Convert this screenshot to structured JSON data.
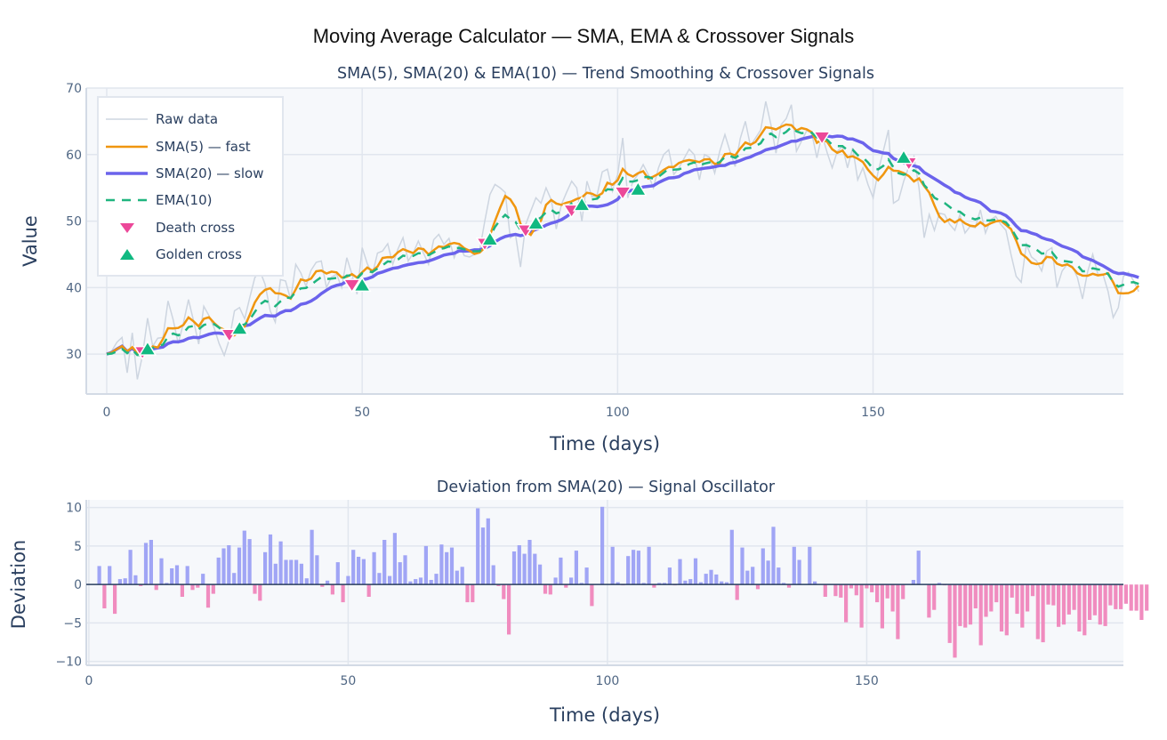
{
  "title": "Moving Average Calculator — SMA, EMA & Crossover Signals",
  "colors": {
    "raw": "#cdd5e0",
    "sma5": "#f0960f",
    "sma20": "#6b63ec",
    "ema10": "#1fb57f",
    "death": "#ec4899",
    "golden": "#10b981",
    "dev_pos": "#a0a5f5",
    "dev_neg": "#f08cbf",
    "plot_bg": "#f6f8fb",
    "grid": "#e1e6ee"
  },
  "chart_data": [
    {
      "type": "line",
      "title": "SMA(5), SMA(20) & EMA(10) — Trend Smoothing & Crossover Signals",
      "xlabel": "Time (days)",
      "ylabel": "Value",
      "xlim": [
        -4,
        199
      ],
      "ylim": [
        24,
        70
      ],
      "xticks": [
        0,
        50,
        100,
        150
      ],
      "yticks": [
        30,
        40,
        50,
        60,
        70
      ],
      "grid": true,
      "legend_position": "top-left",
      "legend": [
        "Raw data",
        "SMA(5) — fast",
        "SMA(20) — slow",
        "EMA(10)",
        "Death cross",
        "Golden cross"
      ],
      "series": [
        {
          "name": "Raw data",
          "values": [
            30,
            30.5,
            31.8,
            32.5,
            27.2,
            33.2,
            26.2,
            29.8,
            35.4,
            31.2,
            32.4,
            32.5,
            38,
            35.2,
            31.6,
            34.6,
            38.2,
            35,
            31.5,
            37.2,
            35.8,
            34,
            31.6,
            29.8,
            32.2,
            36.5,
            37,
            35.3,
            38.5,
            41.5,
            42.5,
            40.5,
            36.5,
            34.8,
            41.2,
            41,
            38.2,
            43.5,
            42.2,
            40.2,
            42.6,
            43.8,
            44,
            40,
            41.6,
            42,
            40,
            44.5,
            42,
            39,
            46,
            43.6,
            42,
            45.2,
            45.5,
            46.6,
            43.5,
            45.8,
            47.5,
            44,
            45.2,
            47,
            45.2,
            43.5,
            47.2,
            48,
            46.5,
            47.4,
            44.5,
            46.4,
            44.8,
            44.6,
            45,
            45.6,
            50,
            54,
            55.5,
            55,
            54.3,
            47.5,
            48,
            43.1,
            49.5,
            51.5,
            53.5,
            52.7,
            55,
            53.2,
            48.8,
            52.5,
            54.3,
            56,
            55,
            50,
            56,
            53.6,
            54,
            57.4,
            57.8,
            54.5,
            57,
            62.5,
            53.5,
            56,
            57,
            58.5,
            57,
            55,
            58,
            60,
            60.7,
            57,
            58,
            59.4,
            60.8,
            60,
            56.2,
            60,
            59.6,
            57.2,
            60.5,
            63,
            60.5,
            58.2,
            62.4,
            65,
            61.3,
            62.5,
            63.7,
            68,
            64.5,
            60.2,
            64.5,
            65.4,
            67.5,
            60.5,
            62,
            63.6,
            63.2,
            59.5,
            63,
            60.3,
            58,
            60.5,
            61.2,
            58,
            61,
            56.2,
            58,
            55.5,
            53.5,
            57.5,
            60.5,
            63.7,
            52.7,
            53.2,
            56,
            58.2,
            59.7,
            55,
            47.5,
            51,
            48.6,
            51.2,
            51,
            49.5,
            48.6,
            51,
            48.2,
            49.2,
            49,
            51.7,
            48.2,
            50.2,
            50.7,
            49.5,
            48.6,
            45,
            41.7,
            40.8,
            46.5,
            44.6,
            44,
            42.5,
            45.5,
            46,
            40,
            42.5,
            43.5,
            43.2,
            41.5,
            38.3,
            42.4,
            45,
            42,
            42,
            39.4,
            35.5,
            37,
            41.7,
            42.3,
            41,
            39.4
          ]
        },
        {
          "name": "SMA(5) — fast",
          "derived_from": "Raw data",
          "window": 5
        },
        {
          "name": "SMA(20) — slow",
          "derived_from": "Raw data",
          "window": 20
        },
        {
          "name": "EMA(10)",
          "derived_from": "Raw data",
          "span": 10
        },
        {
          "name": "Death cross",
          "x": [
            7,
            24,
            48,
            74,
            82,
            91,
            101,
            140,
            157
          ],
          "y": [
            30.2,
            32.8,
            40.3,
            46.5,
            48.5,
            51.5,
            54.2,
            62.5,
            58.6
          ]
        },
        {
          "name": "Golden cross",
          "x": [
            8,
            26,
            50,
            75,
            84,
            93,
            104,
            156
          ],
          "y": [
            30.8,
            33.9,
            40.4,
            47.3,
            49.7,
            52.5,
            54.8,
            59.6
          ]
        }
      ]
    },
    {
      "type": "bar",
      "title": "Deviation from SMA(20) — Signal Oscillator",
      "xlabel": "Time (days)",
      "ylabel": "Deviation",
      "xlim": [
        -0.5,
        199.5
      ],
      "ylim": [
        -10.5,
        11
      ],
      "xticks": [
        0,
        50,
        100,
        150
      ],
      "yticks": [
        -10,
        -5,
        0,
        5,
        10
      ],
      "grid": true,
      "zero_line": true,
      "x_start": 0,
      "values": [
        0,
        0,
        2.4,
        -3.1,
        2.4,
        -3.8,
        0.7,
        0.8,
        4.5,
        1.2,
        -0.2,
        5.4,
        5.8,
        -0.7,
        3.4,
        0.2,
        2.1,
        2.5,
        -1.6,
        2.4,
        -0.7,
        -0.4,
        1.4,
        -3,
        -1.2,
        3.5,
        4.7,
        5.1,
        1.5,
        4.8,
        7,
        5.9,
        -1.2,
        -2.1,
        4.2,
        6.5,
        2.7,
        5.6,
        3.2,
        3.2,
        3.2,
        2.7,
        0.8,
        7.1,
        3.8,
        -0.3,
        0.5,
        -1.3,
        2.9,
        -2.3,
        1.1,
        4.5,
        3.6,
        3.3,
        -1.6,
        4.2,
        1.5,
        5.8,
        1.1,
        6.7,
        2.9,
        3.8,
        0.4,
        0.7,
        0.9,
        5,
        0.6,
        1.4,
        5.2,
        4.2,
        4.8,
        1.8,
        2.3,
        -2.3,
        -2.3,
        9.9,
        7.4,
        8.6,
        2.5,
        -0.2,
        -1.9,
        -6.5,
        4.3,
        5.1,
        4,
        5.8,
        4,
        2.6,
        -1.2,
        -1.3,
        0.9,
        3.5,
        -0.4,
        0.9,
        4.4,
        0.2,
        2.2,
        -2.8,
        0,
        10.1,
        0,
        4.9,
        0.3,
        -0.1,
        3.7,
        4.5,
        4.4,
        0.2,
        4.9,
        -0.4,
        0.2,
        0.2,
        2.2,
        -0.1,
        3.3,
        0.5,
        0.7,
        3.4,
        0.3,
        1.4,
        1.9,
        1.3,
        0.4,
        0.3,
        7.1,
        -2,
        4.8,
        1.8,
        2.3,
        -0.6,
        4.7,
        3.1,
        7.5,
        2.2,
        0.2,
        -0.4,
        4.9,
        3.2,
        0,
        4.9,
        0.4,
        0,
        -1.6,
        0,
        -1.5,
        -1.7,
        -4.9,
        -0.5,
        -1.4,
        -5.6,
        -0.5,
        -1,
        -2.3,
        -5.7,
        -1.8,
        -3.5,
        -7.1,
        -1.9,
        0,
        0.6,
        4.4,
        0,
        -4.3,
        -3.3,
        0.2,
        -0.1,
        -7.6,
        -9.5,
        -5.4,
        -5.6,
        -5.2,
        -3.1,
        -7.9,
        -4.2,
        -3.5,
        -2.3,
        -6.1,
        -6.6,
        -1.7,
        -3.8,
        -5.6,
        -3.5,
        -1.5,
        -7.1,
        -7.5,
        -2.6,
        -2.7,
        -5.5,
        -5.2,
        -3.9,
        -3.3,
        -6.1,
        -6.6,
        -4.6,
        -4,
        -5.2,
        -5.4,
        -2.7,
        -3.2,
        -3.2,
        -2.5,
        -3.4,
        -3.4,
        -4.6,
        -3.4
      ]
    }
  ]
}
